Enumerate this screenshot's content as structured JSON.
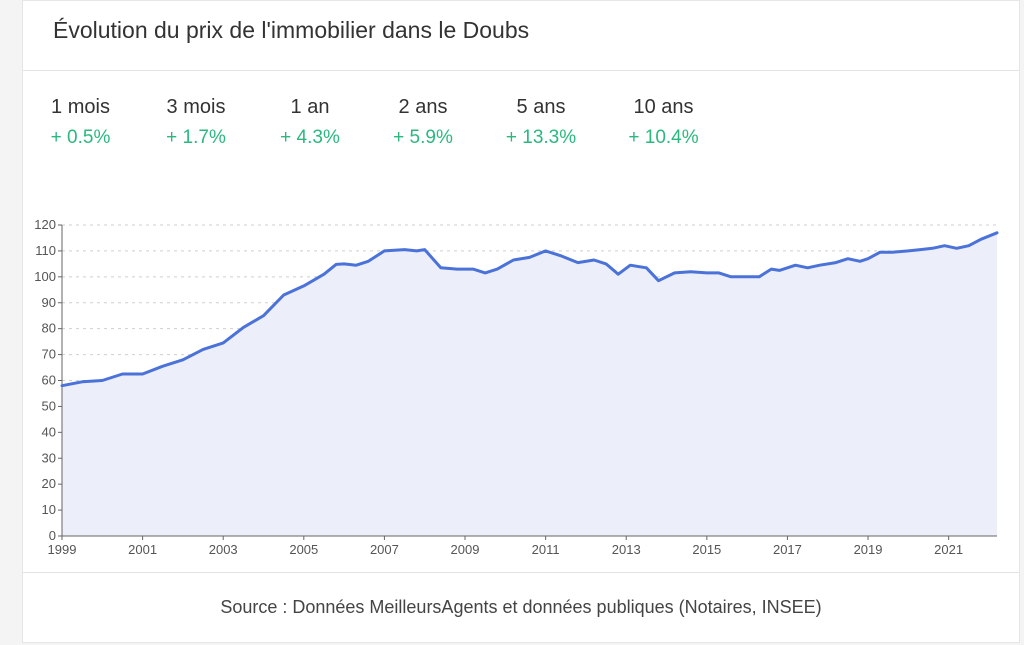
{
  "title": "Évolution du prix de l'immobilier dans le Doubs",
  "stats": [
    {
      "label": "1 mois",
      "value": "+ 0.5%"
    },
    {
      "label": "3 mois",
      "value": "+ 1.7%"
    },
    {
      "label": "1 an",
      "value": "+ 4.3%"
    },
    {
      "label": "2 ans",
      "value": "+ 5.9%"
    },
    {
      "label": "5 ans",
      "value": "+ 13.3%"
    },
    {
      "label": "10 ans",
      "value": "+ 10.4%"
    }
  ],
  "source": "Source : Données MeilleursAgents et données publiques (Notaires, INSEE)",
  "colors": {
    "positive": "#2bb87f",
    "line": "#4a72d9",
    "area": "#eceef9",
    "grid": "#cfcfcf"
  },
  "chart_data": {
    "type": "area",
    "xlim": [
      1999,
      2022.2
    ],
    "ylim": [
      0,
      120
    ],
    "xticks": [
      1999,
      2001,
      2003,
      2005,
      2007,
      2009,
      2011,
      2013,
      2015,
      2017,
      2019,
      2021
    ],
    "yticks": [
      0,
      10,
      20,
      30,
      40,
      50,
      60,
      70,
      80,
      90,
      100,
      110,
      120
    ],
    "grid": true,
    "x": [
      1999.0,
      1999.5,
      2000.0,
      2000.5,
      2001.0,
      2001.5,
      2002.0,
      2002.5,
      2003.0,
      2003.5,
      2004.0,
      2004.5,
      2005.0,
      2005.5,
      2005.8,
      2006.0,
      2006.3,
      2006.6,
      2007.0,
      2007.5,
      2007.8,
      2008.0,
      2008.4,
      2008.8,
      2009.2,
      2009.5,
      2009.8,
      2010.2,
      2010.6,
      2011.0,
      2011.4,
      2011.8,
      2012.2,
      2012.5,
      2012.8,
      2013.1,
      2013.5,
      2013.8,
      2014.2,
      2014.6,
      2015.0,
      2015.3,
      2015.6,
      2016.0,
      2016.3,
      2016.6,
      2016.8,
      2017.2,
      2017.5,
      2017.8,
      2018.2,
      2018.5,
      2018.8,
      2019.0,
      2019.3,
      2019.6,
      2020.0,
      2020.3,
      2020.6,
      2020.9,
      2021.2,
      2021.5,
      2021.8,
      2022.2
    ],
    "y": [
      58,
      59.5,
      60,
      62.5,
      62.5,
      65.5,
      68,
      72,
      74.5,
      80.5,
      85,
      93,
      96.5,
      101,
      104.8,
      105,
      104.5,
      106,
      110,
      110.5,
      110,
      110.5,
      103.5,
      103,
      103,
      101.5,
      103,
      106.5,
      107.5,
      110,
      108,
      105.5,
      106.5,
      105,
      101,
      104.5,
      103.5,
      98.5,
      101.5,
      102,
      101.5,
      101.5,
      100,
      100,
      100,
      103,
      102.5,
      104.5,
      103.5,
      104.5,
      105.5,
      107,
      106,
      107,
      109.5,
      109.5,
      110,
      110.5,
      111,
      112,
      111,
      112,
      114.5,
      117
    ]
  }
}
